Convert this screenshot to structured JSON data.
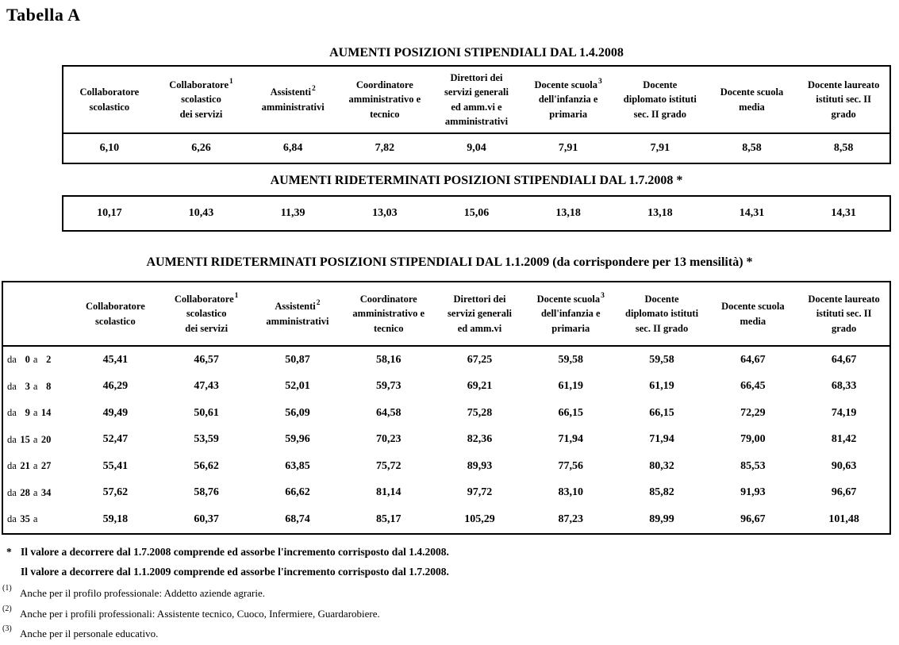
{
  "document": {
    "title": "Tabella A"
  },
  "colors": {
    "text": "#000000",
    "background": "#ffffff",
    "border": "#000000"
  },
  "table_2008_04": {
    "title": "AUMENTI POSIZIONI STIPENDIALI DAL 1.4.2008",
    "columns": [
      {
        "lines": [
          {
            "t": "Collaboratore"
          },
          {
            "t": "scolastico"
          }
        ]
      },
      {
        "lines": [
          {
            "t": "Collaboratore",
            "sup": "1"
          },
          {
            "t": "scolastico"
          },
          {
            "t": "dei servizi"
          }
        ]
      },
      {
        "lines": [
          {
            "t": "Assistenti",
            "sup": "2"
          },
          {
            "t": "amministrativi"
          }
        ]
      },
      {
        "lines": [
          {
            "t": "Coordinatore"
          },
          {
            "t": "amministrativo e"
          },
          {
            "t": "tecnico"
          }
        ]
      },
      {
        "lines": [
          {
            "t": "Direttori dei"
          },
          {
            "t": "servizi generali"
          },
          {
            "t": "ed amm.vi e"
          },
          {
            "t": "amministrativi"
          }
        ]
      },
      {
        "lines": [
          {
            "t": "Docente scuola",
            "sup": "3"
          },
          {
            "t": "dell'infanzia e"
          },
          {
            "t": "primaria"
          }
        ]
      },
      {
        "lines": [
          {
            "t": "Docente"
          },
          {
            "t": "diplomato istituti"
          },
          {
            "t": "sec. II grado"
          }
        ]
      },
      {
        "lines": [
          {
            "t": "Docente scuola"
          },
          {
            "t": "media"
          }
        ]
      },
      {
        "lines": [
          {
            "t": "Docente laureato"
          },
          {
            "t": "istituti sec. II"
          },
          {
            "t": "grado"
          }
        ]
      }
    ],
    "values": [
      "6,10",
      "6,26",
      "6,84",
      "7,82",
      "9,04",
      "7,91",
      "7,91",
      "8,58",
      "8,58"
    ]
  },
  "table_2008_07": {
    "title": "AUMENTI RIDETERMINATI POSIZIONI STIPENDIALI DAL 1.7.2008 *",
    "values": [
      "10,17",
      "10,43",
      "11,39",
      "13,03",
      "15,06",
      "13,18",
      "13,18",
      "14,31",
      "14,31"
    ]
  },
  "table_2009_01": {
    "title": "AUMENTI RIDETERMINATI POSIZIONI STIPENDIALI DAL 1.1.2009 (da corrispondere per 13 mensilità) *",
    "columns": [
      {
        "lines": [
          {
            "t": "Collaboratore"
          },
          {
            "t": "scolastico"
          }
        ]
      },
      {
        "lines": [
          {
            "t": "Collaboratore",
            "sup": "1"
          },
          {
            "t": "scolastico"
          },
          {
            "t": "dei servizi"
          }
        ]
      },
      {
        "lines": [
          {
            "t": "Assistenti",
            "sup": "2"
          },
          {
            "t": "amministrativi"
          }
        ]
      },
      {
        "lines": [
          {
            "t": "Coordinatore"
          },
          {
            "t": "amministrativo e"
          },
          {
            "t": "tecnico"
          }
        ]
      },
      {
        "lines": [
          {
            "t": "Direttori dei"
          },
          {
            "t": "servizi generali"
          },
          {
            "t": "ed amm.vi"
          }
        ]
      },
      {
        "lines": [
          {
            "t": "Docente scuola",
            "sup": "3"
          },
          {
            "t": "dell'infanzia e"
          },
          {
            "t": "primaria"
          }
        ]
      },
      {
        "lines": [
          {
            "t": "Docente"
          },
          {
            "t": "diplomato istituti"
          },
          {
            "t": "sec. II grado"
          }
        ]
      },
      {
        "lines": [
          {
            "t": "Docente scuola"
          },
          {
            "t": "media"
          }
        ]
      },
      {
        "lines": [
          {
            "t": "Docente laureato"
          },
          {
            "t": "istituti sec. II"
          },
          {
            "t": "grado"
          }
        ]
      }
    ],
    "rows": [
      {
        "label": {
          "prefix": "da",
          "from": "0",
          "mid": "a",
          "to": "2"
        },
        "values": [
          "45,41",
          "46,57",
          "50,87",
          "58,16",
          "67,25",
          "59,58",
          "59,58",
          "64,67",
          "64,67"
        ]
      },
      {
        "label": {
          "prefix": "da",
          "from": "3",
          "mid": "a",
          "to": "8"
        },
        "values": [
          "46,29",
          "47,43",
          "52,01",
          "59,73",
          "69,21",
          "61,19",
          "61,19",
          "66,45",
          "68,33"
        ]
      },
      {
        "label": {
          "prefix": "da",
          "from": "9",
          "mid": "a",
          "to": "14"
        },
        "values": [
          "49,49",
          "50,61",
          "56,09",
          "64,58",
          "75,28",
          "66,15",
          "66,15",
          "72,29",
          "74,19"
        ]
      },
      {
        "label": {
          "prefix": "da",
          "from": "15",
          "mid": "a",
          "to": "20"
        },
        "values": [
          "52,47",
          "53,59",
          "59,96",
          "70,23",
          "82,36",
          "71,94",
          "71,94",
          "79,00",
          "81,42"
        ]
      },
      {
        "label": {
          "prefix": "da",
          "from": "21",
          "mid": "a",
          "to": "27"
        },
        "values": [
          "55,41",
          "56,62",
          "63,85",
          "75,72",
          "89,93",
          "77,56",
          "80,32",
          "85,53",
          "90,63"
        ]
      },
      {
        "label": {
          "prefix": "da",
          "from": "28",
          "mid": "a",
          "to": "34"
        },
        "values": [
          "57,62",
          "58,76",
          "66,62",
          "81,14",
          "97,72",
          "83,10",
          "85,82",
          "91,93",
          "96,67"
        ]
      },
      {
        "label": {
          "prefix": "da",
          "from": "35",
          "mid": "a",
          "to": ""
        },
        "values": [
          "59,18",
          "60,37",
          "68,74",
          "85,17",
          "105,29",
          "87,23",
          "89,99",
          "96,67",
          "101,48"
        ]
      }
    ]
  },
  "footnotes": {
    "star_marker": "*",
    "star_lines": [
      "Il valore a decorrere dal 1.7.2008 comprende ed assorbe l'incremento corrisposto dal 1.4.2008.",
      "Il valore a decorrere dal 1.1.2009 comprende ed assorbe l'incremento corrisposto dal 1.7.2008."
    ],
    "numbered": [
      {
        "marker": "(1)",
        "text": "Anche per il profilo professionale: Addetto aziende agrarie."
      },
      {
        "marker": "(2)",
        "text": "Anche per i profili professionali: Assistente tecnico, Cuoco, Infermiere, Guardarobiere."
      },
      {
        "marker": "(3)",
        "text": "Anche per il personale educativo."
      }
    ]
  }
}
